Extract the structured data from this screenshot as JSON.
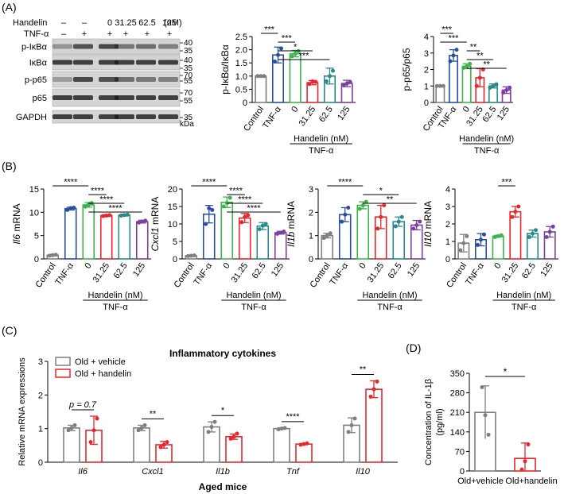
{
  "panel_labels": {
    "a": "(A)",
    "b": "(B)",
    "c": "(C)",
    "d": "(D)"
  },
  "blot": {
    "handelin_label": "Handelin",
    "tnf_label": "TNF-α",
    "handelin_doses": [
      "–",
      "–",
      "0",
      "31.25",
      "62.5",
      "125"
    ],
    "unit": "(nM)",
    "tnf_signs": [
      "–",
      "+",
      "+",
      "+",
      "+",
      "+"
    ],
    "rows": [
      "p-IκBα",
      "IκBα",
      "p-p65",
      "p65",
      "GAPDH"
    ],
    "markers": [
      "40",
      "35",
      "40",
      "35",
      "70",
      "55",
      "70",
      "55",
      "35"
    ],
    "kda": "kDa"
  },
  "colors": {
    "Control": "#7f7f7f",
    "TNF-α": "#2b4ea2",
    "0": "#3cb44b",
    "31.25": "#e8262b",
    "62.5": "#2a8a8a",
    "125": "#7b3fa0",
    "vehicle": "#7f7f7f",
    "handelin": "#e8262b"
  },
  "group_labels": {
    "categories": [
      "Control",
      "TNF-α",
      "0",
      "31.25",
      "62.5",
      "125"
    ],
    "handelin_label": "Handelin (nM)",
    "tnf_label": "TNF-α"
  },
  "chart_data": [
    {
      "id": "A1",
      "type": "bar",
      "ylabel": "p-IκBα/IκBα",
      "ylim": [
        0,
        2.5
      ],
      "yticks": [
        "0",
        "0.5",
        "1.0",
        "1.5",
        "2.0",
        "2.5"
      ],
      "categories": [
        "Control",
        "TNF-α",
        "0",
        "31.25",
        "62.5",
        "125"
      ],
      "values": [
        1.0,
        1.8,
        1.85,
        0.75,
        1.0,
        0.72
      ],
      "errors": [
        0.02,
        0.3,
        0.12,
        0.08,
        0.3,
        0.12
      ],
      "points": [
        [
          1.0,
          1.0,
          1.0
        ],
        [
          1.55,
          2.05,
          1.8
        ],
        [
          1.75,
          1.95,
          1.85
        ],
        [
          0.7,
          0.78,
          0.8
        ],
        [
          0.8,
          1.2,
          1.0
        ],
        [
          0.65,
          0.78,
          0.72
        ]
      ],
      "sig": [
        {
          "a": 1,
          "b": 2,
          "label": "***"
        },
        {
          "a": 2,
          "b": 3,
          "label": "***"
        },
        {
          "a": 2,
          "b": 4,
          "label": "*"
        },
        {
          "a": 2,
          "b": 5,
          "label": "***"
        }
      ]
    },
    {
      "id": "A2",
      "type": "bar",
      "ylabel": "p-p65/p65",
      "ylim": [
        0,
        4
      ],
      "yticks": [
        "0",
        "1",
        "2",
        "3",
        "4"
      ],
      "categories": [
        "Control",
        "TNF-α",
        "0",
        "31.25",
        "62.5",
        "125"
      ],
      "values": [
        1.0,
        2.85,
        2.2,
        1.5,
        1.0,
        0.75
      ],
      "errors": [
        0.02,
        0.35,
        0.15,
        0.55,
        0.12,
        0.2
      ],
      "points": [
        [
          1.0,
          1.0,
          1.0
        ],
        [
          2.5,
          3.2,
          2.85
        ],
        [
          2.1,
          2.35,
          2.2
        ],
        [
          1.0,
          2.0,
          1.5
        ],
        [
          0.9,
          1.1,
          1.0
        ],
        [
          0.6,
          0.9,
          0.75
        ]
      ],
      "sig": [
        {
          "a": 1,
          "b": 2,
          "label": "***"
        },
        {
          "a": 1,
          "b": 3,
          "label": "***"
        },
        {
          "a": 3,
          "b": 4,
          "label": "**"
        },
        {
          "a": 3,
          "b": 5,
          "label": "**"
        },
        {
          "a": 3,
          "b": 6,
          "label": "**"
        }
      ]
    },
    {
      "id": "B1",
      "type": "bar",
      "ylabel_italic": "Il6",
      "ylabel_rest": " mRNA",
      "ylim": [
        0,
        15
      ],
      "yticks": [
        "0",
        "5",
        "10",
        "15"
      ],
      "categories": [
        "Control",
        "TNF-α",
        "0",
        "31.25",
        "62.5",
        "125"
      ],
      "values": [
        0.8,
        10.8,
        11.6,
        9.3,
        9.4,
        8.0
      ],
      "errors": [
        0.15,
        0.3,
        0.5,
        0.2,
        0.2,
        0.3
      ],
      "points": [
        [
          0.7,
          0.9,
          0.8
        ],
        [
          10.5,
          11.0,
          10.9
        ],
        [
          11.2,
          12.0,
          11.6
        ],
        [
          9.2,
          9.4,
          9.3
        ],
        [
          9.3,
          9.5,
          9.4
        ],
        [
          7.8,
          8.2,
          8.0
        ]
      ],
      "sig": [
        {
          "a": 1,
          "b": 3,
          "label": "****"
        },
        {
          "a": 3,
          "b": 4,
          "label": "****"
        },
        {
          "a": 3,
          "b": 5,
          "label": "****"
        },
        {
          "a": 3,
          "b": 6,
          "label": "****"
        }
      ]
    },
    {
      "id": "B2",
      "type": "bar",
      "ylabel_italic": "Cxcl1",
      "ylabel_rest": " mRNA",
      "ylim": [
        0,
        20
      ],
      "yticks": [
        "0",
        "5",
        "10",
        "15",
        "20"
      ],
      "categories": [
        "Control",
        "TNF-α",
        "0",
        "31.25",
        "62.5",
        "125"
      ],
      "values": [
        0.9,
        12.8,
        16.2,
        11.7,
        9.4,
        7.5
      ],
      "errors": [
        0.2,
        2.5,
        1.5,
        1.3,
        1.0,
        0.4
      ],
      "points": [
        [
          0.8,
          1.0,
          0.9
        ],
        [
          10.0,
          14.0,
          14.5
        ],
        [
          15.0,
          17.5,
          16.0
        ],
        [
          10.5,
          12.5,
          12.0
        ],
        [
          8.5,
          10.0,
          9.5
        ],
        [
          7.2,
          7.8,
          7.5
        ]
      ],
      "sig": [
        {
          "a": 1,
          "b": 3,
          "label": "****"
        },
        {
          "a": 3,
          "b": 4,
          "label": "****"
        },
        {
          "a": 3,
          "b": 5,
          "label": "****"
        },
        {
          "a": 3,
          "b": 6,
          "label": "****"
        }
      ]
    },
    {
      "id": "B3",
      "type": "bar",
      "ylabel_italic": "Il1b",
      "ylabel_rest": " mRNA",
      "ylim": [
        0,
        3
      ],
      "yticks": [
        "0",
        "1",
        "2",
        "3"
      ],
      "categories": [
        "Control",
        "TNF-α",
        "0",
        "31.25",
        "62.5",
        "125"
      ],
      "values": [
        1.0,
        1.9,
        2.3,
        1.8,
        1.6,
        1.45
      ],
      "errors": [
        0.1,
        0.3,
        0.15,
        0.5,
        0.2,
        0.2
      ],
      "points": [
        [
          0.9,
          1.1,
          1.0
        ],
        [
          1.6,
          2.2,
          1.9
        ],
        [
          2.15,
          2.45,
          2.3
        ],
        [
          1.3,
          2.3,
          1.8
        ],
        [
          1.4,
          1.8,
          1.6
        ],
        [
          1.3,
          1.6,
          1.45
        ]
      ],
      "sig": [
        {
          "a": 1,
          "b": 3,
          "label": "****"
        },
        {
          "a": 3,
          "b": 5,
          "label": "*"
        },
        {
          "a": 3,
          "b": 6,
          "label": "**"
        }
      ]
    },
    {
      "id": "B4",
      "type": "bar",
      "ylabel_italic": "Il10",
      "ylabel_rest": " mRNA",
      "ylim": [
        0,
        4
      ],
      "yticks": [
        "0",
        "1",
        "2",
        "3",
        "4"
      ],
      "categories": [
        "Control",
        "TNF-α",
        "0",
        "31.25",
        "62.5",
        "125"
      ],
      "values": [
        0.9,
        1.1,
        1.3,
        2.7,
        1.45,
        1.55
      ],
      "errors": [
        0.5,
        0.35,
        0.05,
        0.3,
        0.2,
        0.3
      ],
      "points": [
        [
          0.5,
          1.3,
          0.9
        ],
        [
          0.8,
          1.4,
          1.1
        ],
        [
          1.25,
          1.35,
          1.3
        ],
        [
          2.4,
          3.0,
          2.7
        ],
        [
          1.25,
          1.65,
          1.45
        ],
        [
          1.25,
          1.85,
          1.55
        ]
      ],
      "sig": [
        {
          "a": 3,
          "b": 4,
          "label": "***"
        }
      ]
    },
    {
      "id": "C",
      "type": "bar",
      "title": "Inflammatory cytokines",
      "ylabel": "Relative mRNA expressions",
      "xlabel": "Aged mice",
      "ylim": [
        0,
        3
      ],
      "yticks": [
        "0",
        "1",
        "2",
        "3"
      ],
      "categories": [
        "Il6",
        "Cxcl1",
        "Il1b",
        "Tnf",
        "Il10"
      ],
      "series": [
        {
          "name": "Old + vehicle",
          "values": [
            1.02,
            1.02,
            1.05,
            1.0,
            1.1
          ],
          "errors": [
            0.08,
            0.08,
            0.15,
            0.02,
            0.22
          ],
          "points": [
            [
              0.95,
              1.1,
              1.02
            ],
            [
              0.95,
              1.1,
              1.02
            ],
            [
              0.9,
              1.2,
              1.05
            ],
            [
              0.98,
              1.02,
              1.0
            ],
            [
              0.9,
              1.3,
              1.1
            ]
          ]
        },
        {
          "name": "Old + handelin",
          "values": [
            0.95,
            0.52,
            0.76,
            0.54,
            2.17
          ],
          "errors": [
            0.42,
            0.1,
            0.08,
            0.02,
            0.25
          ],
          "points": [
            [
              0.6,
              1.3,
              0.95
            ],
            [
              0.45,
              0.6,
              0.52
            ],
            [
              0.7,
              0.85,
              0.76
            ],
            [
              0.52,
              0.56,
              0.54
            ],
            [
              1.95,
              2.4,
              2.17
            ]
          ]
        }
      ],
      "sig": [
        {
          "i": 0,
          "label": "p = 0.7"
        },
        {
          "i": 1,
          "label": "**"
        },
        {
          "i": 2,
          "label": "*"
        },
        {
          "i": 3,
          "label": "****"
        },
        {
          "i": 4,
          "label": "**"
        }
      ]
    },
    {
      "id": "D",
      "type": "bar",
      "ylabel": "Concentration of IL-1β",
      "ylabel2": "(pg/ml)",
      "ylim": [
        0,
        350
      ],
      "yticks": [
        "0",
        "70",
        "140",
        "210",
        "280",
        "350"
      ],
      "categories": [
        "Old+vehicle",
        "Old+handelin"
      ],
      "values": [
        210,
        45
      ],
      "errors": [
        95,
        55
      ],
      "points": [
        [
          300,
          130,
          200
        ],
        [
          5,
          95,
          35
        ]
      ],
      "sig": [
        {
          "a": 1,
          "b": 2,
          "label": "*"
        }
      ]
    }
  ]
}
